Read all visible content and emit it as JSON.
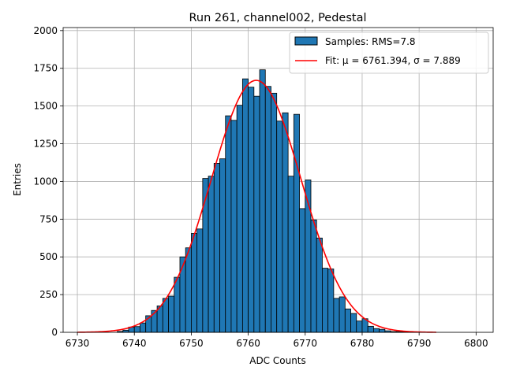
{
  "chart_data": {
    "type": "bar",
    "title": "Run 261, channel002, Pedestal",
    "xlabel": "ADC Counts",
    "ylabel": "Entries",
    "xlim": [
      6727.5,
      6803
    ],
    "ylim": [
      0,
      2020
    ],
    "xticks": [
      6730,
      6740,
      6750,
      6760,
      6770,
      6780,
      6790,
      6800
    ],
    "yticks": [
      0,
      250,
      500,
      750,
      1000,
      1250,
      1500,
      1750,
      2000
    ],
    "grid": true,
    "legend_position": "top-right",
    "histogram": {
      "name": "Samples: RMS=7.8",
      "color": "#1f77b4",
      "bin_width": 1,
      "bin_starts": [
        6737,
        6738,
        6739,
        6740,
        6741,
        6742,
        6743,
        6744,
        6745,
        6746,
        6747,
        6748,
        6749,
        6750,
        6751,
        6752,
        6753,
        6754,
        6755,
        6756,
        6757,
        6758,
        6759,
        6760,
        6761,
        6762,
        6763,
        6764,
        6765,
        6766,
        6767,
        6768,
        6769,
        6770,
        6771,
        6772,
        6773,
        6774,
        6775,
        6776,
        6777,
        6778,
        6779,
        6780,
        6781,
        6782,
        6783,
        6784,
        6785,
        6786,
        6787,
        6788,
        6789
      ],
      "counts": [
        6,
        14,
        35,
        38,
        62,
        110,
        145,
        175,
        225,
        240,
        365,
        500,
        560,
        655,
        685,
        1020,
        1035,
        1120,
        1150,
        1435,
        1405,
        1505,
        1680,
        1625,
        1565,
        1740,
        1630,
        1585,
        1400,
        1455,
        1035,
        1445,
        820,
        1010,
        745,
        625,
        425,
        420,
        225,
        235,
        155,
        125,
        75,
        90,
        40,
        25,
        20,
        10,
        5,
        5,
        3,
        5,
        2
      ]
    },
    "fit": {
      "name": "Fit: μ = 6761.394, σ = 7.889",
      "color": "#ff0000",
      "mu": 6761.394,
      "sigma": 7.889,
      "amplitude": 1670,
      "x_range": [
        6730,
        6793
      ]
    }
  }
}
